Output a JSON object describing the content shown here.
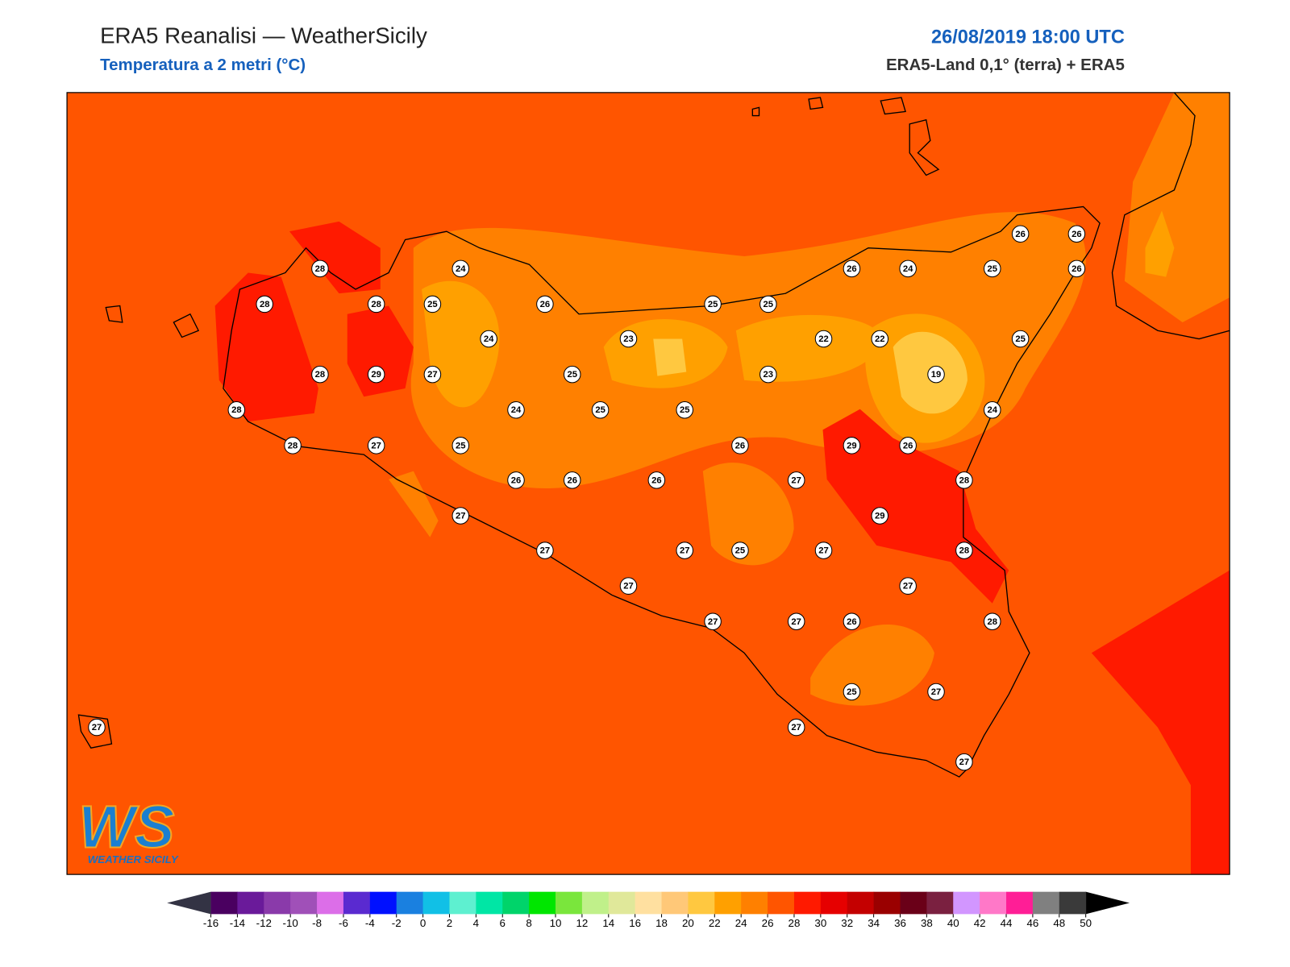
{
  "header": {
    "title": "ERA5 Reanalisi — WeatherSicily",
    "subtitle": "Temperatura a 2 metri (°C)",
    "datetime": "26/08/2019 18:00 UTC",
    "source": "ERA5-Land 0,1° (terra) + ERA5"
  },
  "stations": [
    28,
    24,
    28,
    28,
    25,
    26,
    25,
    25,
    26,
    24,
    25,
    26,
    26,
    26,
    24,
    23,
    22,
    22,
    25,
    28,
    29,
    27,
    25,
    23,
    19,
    28,
    24,
    25,
    25,
    24,
    28,
    27,
    25,
    26,
    29,
    26,
    26,
    26,
    26,
    27,
    28,
    27,
    29,
    27,
    27,
    25,
    27,
    28,
    27,
    27,
    27,
    27,
    26,
    28,
    25,
    27,
    27,
    27,
    27
  ],
  "legend": {
    "ticks": [
      -16,
      -14,
      -12,
      -10,
      -8,
      -6,
      -4,
      -2,
      0,
      2,
      4,
      6,
      8,
      10,
      12,
      14,
      16,
      18,
      20,
      22,
      24,
      26,
      28,
      30,
      32,
      34,
      36,
      38,
      40,
      42,
      44,
      46,
      48,
      50
    ],
    "colors": [
      "#4a0060",
      "#6a1a9a",
      "#8a3aaa",
      "#a050b8",
      "#dc6ee8",
      "#5a2ad0",
      "#0010ff",
      "#1a80e0",
      "#11c0e6",
      "#5ef0d0",
      "#00e6a5",
      "#00d46a",
      "#00e600",
      "#7ae63c",
      "#c0f08a",
      "#e0e89a",
      "#ffe0a0",
      "#ffc878",
      "#ffc840",
      "#ffa000",
      "#ff8000",
      "#ff5500",
      "#ff1a00",
      "#e60000",
      "#c40000",
      "#9a0000",
      "#6a0018",
      "#7a2040",
      "#d296ff",
      "#ff78c8",
      "#ff1e96",
      "#808080",
      "#3a3a3a"
    ],
    "under_color": "#333344",
    "over_color": "#000000"
  },
  "logo": {
    "mark": "WS",
    "name": "WEATHER SICILY"
  }
}
